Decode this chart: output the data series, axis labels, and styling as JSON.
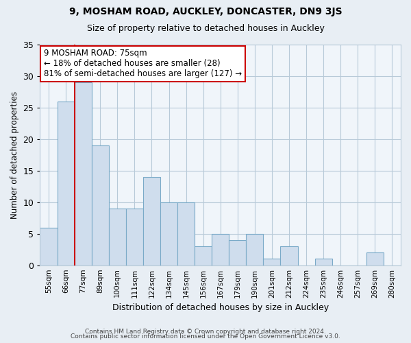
{
  "title1": "9, MOSHAM ROAD, AUCKLEY, DONCASTER, DN9 3JS",
  "title2": "Size of property relative to detached houses in Auckley",
  "xlabel": "Distribution of detached houses by size in Auckley",
  "ylabel": "Number of detached properties",
  "bin_labels": [
    "55sqm",
    "66sqm",
    "77sqm",
    "89sqm",
    "100sqm",
    "111sqm",
    "122sqm",
    "134sqm",
    "145sqm",
    "156sqm",
    "167sqm",
    "179sqm",
    "190sqm",
    "201sqm",
    "212sqm",
    "224sqm",
    "235sqm",
    "246sqm",
    "257sqm",
    "269sqm",
    "280sqm"
  ],
  "bar_values": [
    6,
    26,
    29,
    19,
    9,
    9,
    14,
    10,
    10,
    3,
    5,
    4,
    5,
    1,
    3,
    0,
    1,
    0,
    0,
    2,
    0
  ],
  "bar_color": "#cfdded",
  "bar_edge_color": "#7aaac8",
  "vline_color": "#cc0000",
  "vline_position": 1.5,
  "annotation_text": "9 MOSHAM ROAD: 75sqm\n← 18% of detached houses are smaller (28)\n81% of semi-detached houses are larger (127) →",
  "annotation_box_color": "#ffffff",
  "annotation_box_edge": "#cc0000",
  "ylim": [
    0,
    35
  ],
  "yticks": [
    0,
    5,
    10,
    15,
    20,
    25,
    30,
    35
  ],
  "footer1": "Contains HM Land Registry data © Crown copyright and database right 2024.",
  "footer2": "Contains public sector information licensed under the Open Government Licence v3.0.",
  "bg_color": "#e8eef4",
  "plot_bg_color": "#f0f5fa",
  "grid_color": "#b8cad8"
}
